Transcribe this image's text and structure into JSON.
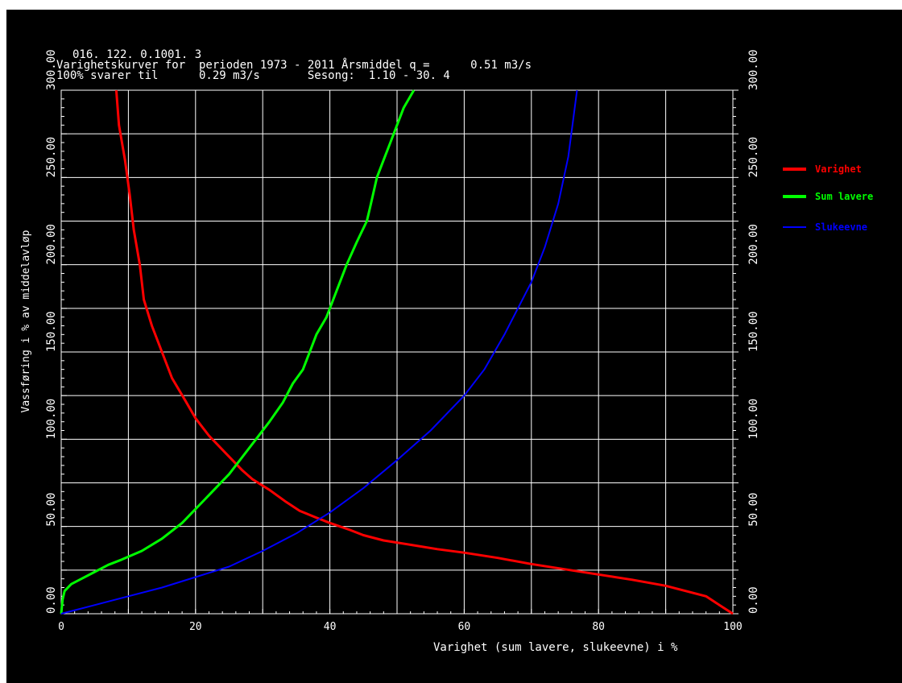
{
  "header": {
    "line1": "016. 122. 0.1001. 3",
    "line2": "Varighetskurver for  perioden 1973 - 2011 Årsmiddel q =      0.51 m3/s",
    "line3": "100% svarer til      0.29 m3/s       Sesong:  1.10 - 30. 4"
  },
  "colors": {
    "background": "#000000",
    "grid": "#ffffff",
    "text": "#ffffff",
    "varighet": "#ff0000",
    "sum_lavere": "#00ff00",
    "slukeevne": "#0000ff"
  },
  "chart_data": {
    "type": "line",
    "xlabel": "Varighet (sum lavere, slukeevne) i %",
    "ylabel": "Vassføring i % av middelavløp",
    "xlim": [
      0,
      100
    ],
    "ylim": [
      0,
      300
    ],
    "x_ticks": [
      "0",
      "20",
      "40",
      "60",
      "80",
      "100"
    ],
    "y_ticks": [
      "0.00",
      "50.00",
      "100.00",
      "150.00",
      "200.00",
      "250.00",
      "300.00"
    ],
    "grid": true,
    "legend_position": "right",
    "series": [
      {
        "name": "Varighet",
        "color": "#ff0000",
        "points": [
          [
            8.2,
            300
          ],
          [
            8.6,
            280
          ],
          [
            9.5,
            260
          ],
          [
            10.2,
            240
          ],
          [
            10.8,
            220
          ],
          [
            11.7,
            200
          ],
          [
            12.3,
            180
          ],
          [
            13.5,
            165
          ],
          [
            15,
            150
          ],
          [
            16.5,
            135
          ],
          [
            18.5,
            122
          ],
          [
            20,
            112
          ],
          [
            22,
            102
          ],
          [
            24.5,
            92
          ],
          [
            27,
            82
          ],
          [
            28.5,
            77
          ],
          [
            31,
            71
          ],
          [
            33.5,
            64
          ],
          [
            35.5,
            59
          ],
          [
            38,
            55
          ],
          [
            40,
            52
          ],
          [
            43,
            48
          ],
          [
            45,
            45
          ],
          [
            48,
            42
          ],
          [
            52,
            39.5
          ],
          [
            56,
            37
          ],
          [
            60,
            35
          ],
          [
            65,
            32
          ],
          [
            70,
            28.5
          ],
          [
            75,
            25.5
          ],
          [
            80,
            22.5
          ],
          [
            85,
            19.5
          ],
          [
            90,
            16
          ],
          [
            93,
            13
          ],
          [
            96,
            10
          ],
          [
            98,
            5
          ],
          [
            100,
            0
          ]
        ]
      },
      {
        "name": "Sum lavere",
        "color": "#00ff00",
        "points": [
          [
            0,
            0
          ],
          [
            0.2,
            8
          ],
          [
            0.5,
            13
          ],
          [
            1.5,
            17
          ],
          [
            3,
            20
          ],
          [
            5,
            24
          ],
          [
            7,
            28
          ],
          [
            9,
            31
          ],
          [
            12,
            36
          ],
          [
            15,
            43
          ],
          [
            18,
            52
          ],
          [
            20,
            60
          ],
          [
            22,
            68
          ],
          [
            25,
            80
          ],
          [
            27,
            90
          ],
          [
            29,
            100
          ],
          [
            31,
            110
          ],
          [
            33,
            121
          ],
          [
            34.5,
            132
          ],
          [
            36,
            140
          ],
          [
            37,
            150
          ],
          [
            38,
            160
          ],
          [
            39.5,
            170
          ],
          [
            41,
            185
          ],
          [
            42.5,
            200
          ],
          [
            44,
            213
          ],
          [
            45.5,
            225
          ],
          [
            46,
            233
          ],
          [
            47,
            250
          ],
          [
            48,
            260
          ],
          [
            49,
            270
          ],
          [
            50,
            280
          ],
          [
            51,
            290
          ],
          [
            52.5,
            300
          ]
        ]
      },
      {
        "name": "Slukeevne",
        "color": "#0000ff",
        "points": [
          [
            0,
            0
          ],
          [
            5,
            5
          ],
          [
            10,
            10
          ],
          [
            15,
            15
          ],
          [
            20,
            21
          ],
          [
            25,
            27
          ],
          [
            30,
            36
          ],
          [
            35,
            46
          ],
          [
            40,
            58
          ],
          [
            45,
            72
          ],
          [
            50,
            88
          ],
          [
            55,
            105
          ],
          [
            60,
            125
          ],
          [
            63,
            140
          ],
          [
            66,
            160
          ],
          [
            68,
            175
          ],
          [
            70,
            190
          ],
          [
            72,
            210
          ],
          [
            74,
            235
          ],
          [
            75.5,
            262
          ],
          [
            76.8,
            300
          ]
        ]
      }
    ]
  }
}
